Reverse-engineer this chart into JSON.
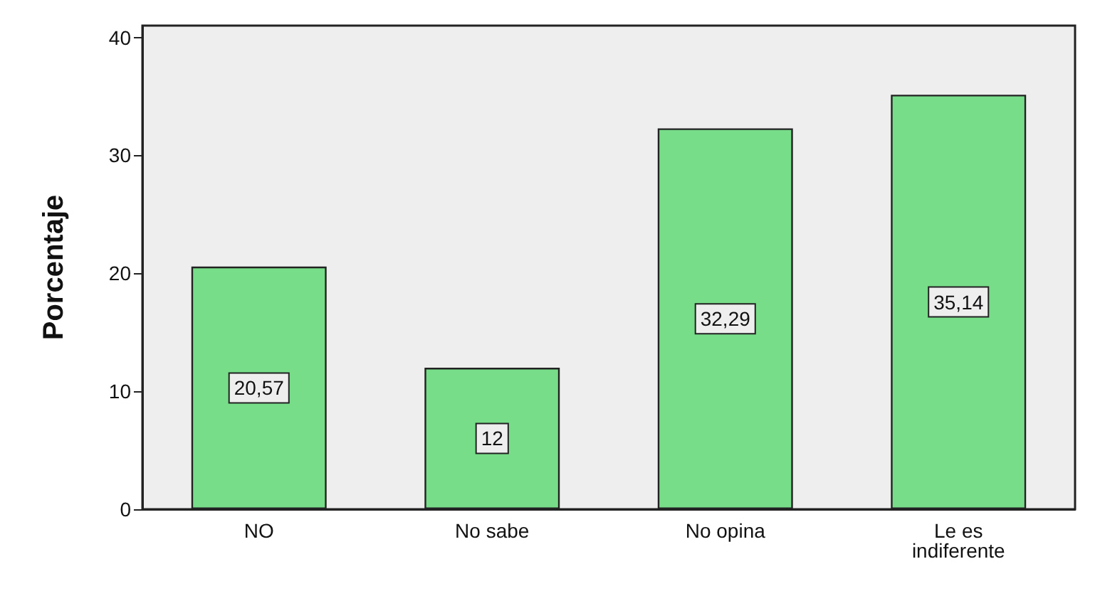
{
  "chart_data": {
    "type": "bar",
    "ylabel": "Porcentaje",
    "categories": [
      "NO",
      "No sabe",
      "No opina",
      "Le es\nindiferente"
    ],
    "values": [
      20.57,
      12,
      32.29,
      35.14
    ],
    "color": "#77dd88",
    "value_labels": [
      "20,57",
      "12",
      "32,29",
      "35,14"
    ],
    "ylim": [
      0,
      41
    ],
    "yticks": [
      0,
      10,
      20,
      30,
      40
    ]
  }
}
